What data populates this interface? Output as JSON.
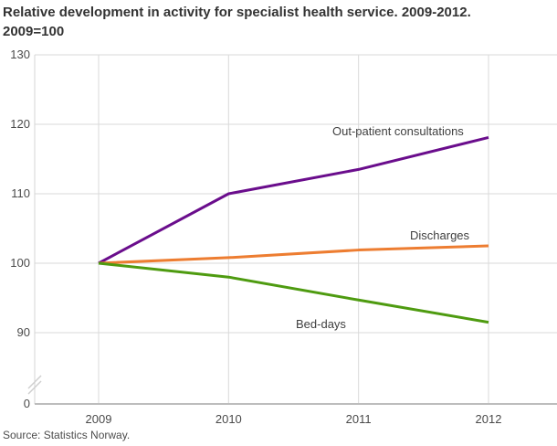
{
  "title": {
    "line1": "Relative development in activity for specialist health service. 2009-2012.",
    "line2": "2009=100"
  },
  "source": "Source: Statistics Norway.",
  "chart_data": {
    "type": "line",
    "x": [
      2009,
      2010,
      2011,
      2012
    ],
    "x_tick_labels": [
      "2009",
      "2010",
      "2011",
      "2012"
    ],
    "y_ticks": [
      130,
      120,
      110,
      100,
      90,
      0
    ],
    "ylim_display": [
      90,
      130
    ],
    "axis_break": true,
    "grid": true,
    "legend_position": "inline-labels-on-plot",
    "title": "Relative development in activity for specialist health service. 2009-2012. 2009=100",
    "xlabel": "",
    "ylabel": "",
    "series": [
      {
        "name": "Out-patient consultations",
        "values": [
          100,
          110,
          113.5,
          118.1
        ],
        "color": "#6a0d8c"
      },
      {
        "name": "Discharges",
        "values": [
          100,
          100.8,
          101.9,
          102.5
        ],
        "color": "#ed7d31"
      },
      {
        "name": "Bed-days",
        "values": [
          100,
          98.0,
          94.7,
          91.5
        ],
        "color": "#4e9b10"
      }
    ],
    "colors": {
      "grid": "#dadada",
      "y_axis": "#d4d4d4",
      "x_axis": "#bdbdbd",
      "break_mark": "#cfcfcf"
    }
  }
}
